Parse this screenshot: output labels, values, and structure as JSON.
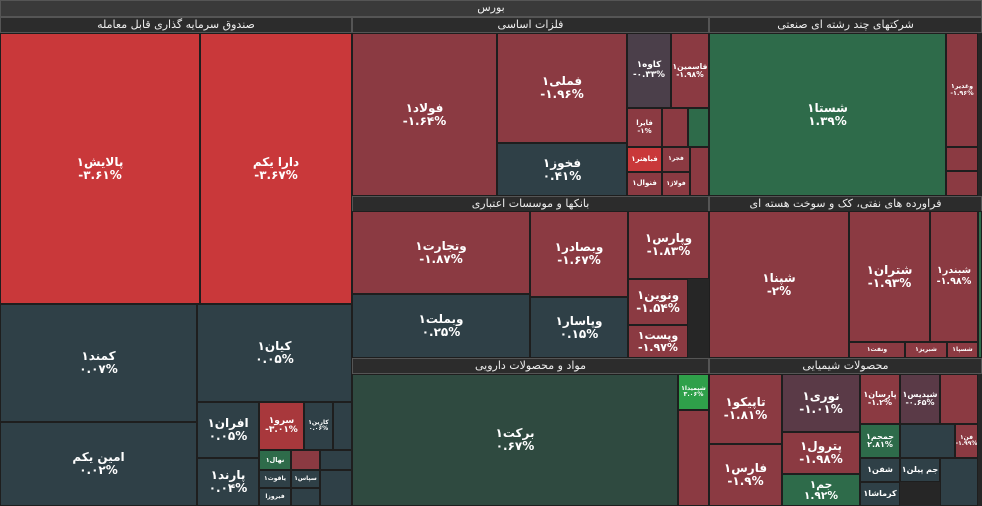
{
  "title": "بورس",
  "sectors": [
    {
      "name": "صندوق سرمایه گذاری قابل معامله",
      "tiles": [
        {
          "symbol": "پالایش۱",
          "change": "-۳.۶۱%"
        },
        {
          "symbol": "دارا یکم",
          "change": "-۳.۶۷%"
        },
        {
          "symbol": "کمند۱",
          "change": "۰.۰۷%"
        },
        {
          "symbol": "امین یکم",
          "change": "۰.۰۲%"
        },
        {
          "symbol": "کیان۱",
          "change": "۰.۰۵%"
        },
        {
          "symbol": "افران۱",
          "change": "۰.۰۵%"
        },
        {
          "symbol": "پارند۱",
          "change": "۰.۰۴%"
        },
        {
          "symbol": "سرو۱",
          "change": "-۳.۰۱%"
        },
        {
          "symbol": "کارین۱",
          "change": "۰.۰۶%"
        },
        {
          "symbol": "نهال۱"
        },
        {
          "symbol": "یاقوت۱"
        },
        {
          "symbol": "سپاس۱"
        },
        {
          "symbol": "فیروزا"
        }
      ]
    },
    {
      "name": "فلزات اساسی",
      "tiles": [
        {
          "symbol": "فولاد۱",
          "change": "-۱.۶۴%"
        },
        {
          "symbol": "فملی۱",
          "change": "-۱.۹۶%"
        },
        {
          "symbol": "فخوز۱",
          "change": "۰.۴۱%"
        },
        {
          "symbol": "کاوه۱",
          "change": "-۰.۳۳%"
        },
        {
          "symbol": "فاسمین۱",
          "change": "-۱.۹۸%"
        },
        {
          "symbol": "فایرا",
          "change": "-۱%"
        },
        {
          "symbol": "فباهنر۱"
        },
        {
          "symbol": "فجر۱"
        },
        {
          "symbol": "فنوال۱"
        },
        {
          "symbol": "فولاژ۱"
        }
      ]
    },
    {
      "name": "شرکتهای چند رشته ای صنعتی",
      "tiles": [
        {
          "symbol": "شستا۱",
          "change": "۱.۳۹%"
        },
        {
          "symbol": "وغدیر۱",
          "change": "-۱.۹۶%"
        }
      ]
    },
    {
      "name": "بانکها و موسسات اعتباری",
      "tiles": [
        {
          "symbol": "وتجارت۱",
          "change": "-۱.۸۷%"
        },
        {
          "symbol": "وبصادر۱",
          "change": "-۱.۶۷%"
        },
        {
          "symbol": "وپارس۱",
          "change": "-۱.۸۳%"
        },
        {
          "symbol": "وبملت۱",
          "change": "۰.۲۵%"
        },
        {
          "symbol": "وپاسار۱",
          "change": "۰.۱۵%"
        },
        {
          "symbol": "ونوین۱",
          "change": "-۱.۵۴%"
        },
        {
          "symbol": "وپست۱",
          "change": "-۱.۹۷%"
        }
      ]
    },
    {
      "name": "فراورده های نفتی، کک و سوخت هسته ای",
      "tiles": [
        {
          "symbol": "شپنا۱",
          "change": "-۲%"
        },
        {
          "symbol": "شتران۱",
          "change": "-۱.۹۳%"
        },
        {
          "symbol": "شبندر۱",
          "change": "-۱.۹۸%"
        },
        {
          "symbol": "ونفت۱"
        },
        {
          "symbol": "شبریز۱"
        },
        {
          "symbol": "شسپا۱"
        }
      ]
    },
    {
      "name": "مواد و محصولات دارویی",
      "tiles": [
        {
          "symbol": "برکت۱",
          "change": "۰.۶۷%"
        },
        {
          "symbol": "شیمیدا۱",
          "change": "۳.۰۶%"
        }
      ]
    },
    {
      "name": "محصولات شیمیایی",
      "tiles": [
        {
          "symbol": "تاپیکو۱",
          "change": "-۱.۸۱%"
        },
        {
          "symbol": "فارس۱",
          "change": "-۱.۹%"
        },
        {
          "symbol": "نوری۱",
          "change": "-۱.۰۱%"
        },
        {
          "symbol": "پترول۱",
          "change": "-۱.۹۸%"
        },
        {
          "symbol": "جم۱",
          "change": "۱.۹۲%"
        },
        {
          "symbol": "پارسان۱",
          "change": "-۱.۲%"
        },
        {
          "symbol": "شپدیس۱",
          "change": "-۰.۶۵%"
        },
        {
          "symbol": "جمجم۱",
          "change": "۲.۸۱%"
        },
        {
          "symbol": "شفن۱"
        },
        {
          "symbol": "کرماشا۱"
        },
        {
          "symbol": "جم پیلن۱"
        },
        {
          "symbol": "فن۱",
          "change": "-۱.۹۹%"
        }
      ]
    }
  ]
}
